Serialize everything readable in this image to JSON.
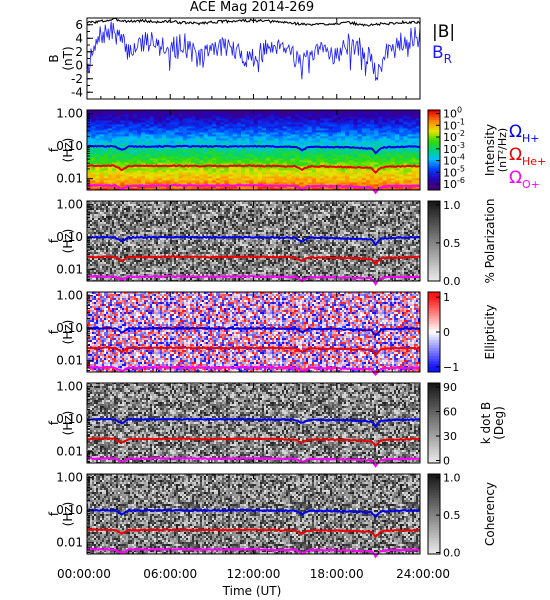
{
  "title": "ACE Mag 2014-269",
  "colors": {
    "B_total": "#000000",
    "B_R": "#1a1aff",
    "omega_H": "#0000ee",
    "omega_He": "#ee0000",
    "omega_O": "#ff00ff",
    "frame": "#000000"
  },
  "chart_data": [
    {
      "type": "line",
      "panel": "B",
      "ylabel": "B (nT)",
      "ytick_labels": [
        "6",
        "4",
        "2",
        "0",
        "-2",
        "-4"
      ],
      "ylim": [
        -5,
        7
      ],
      "xlim_hours": [
        0,
        24
      ],
      "series": [
        {
          "name": "|B|",
          "color": "#000000",
          "x": [
            0,
            1,
            2,
            3,
            4,
            5,
            6,
            7,
            8,
            9,
            10,
            11,
            12,
            13,
            14,
            15,
            16,
            17,
            18,
            19,
            20,
            21,
            22,
            23,
            24
          ],
          "values": [
            6.3,
            6.5,
            6.8,
            6.5,
            6.6,
            6.4,
            6.5,
            6.3,
            6.2,
            6.4,
            6.5,
            6.6,
            6.6,
            6.5,
            6.4,
            6.2,
            6.0,
            6.1,
            6.2,
            6.3,
            5.9,
            6.1,
            6.2,
            6.4,
            6.3
          ]
        },
        {
          "name": "B_R",
          "label_main": "B",
          "label_sub": "R",
          "color": "#1a1aff",
          "x": [
            0,
            1,
            2,
            3,
            4,
            5,
            6,
            7,
            8,
            9,
            10,
            11,
            12,
            13,
            14,
            15,
            16,
            17,
            18,
            19,
            20,
            21,
            22,
            23,
            24
          ],
          "values": [
            -0.5,
            4.5,
            5.0,
            2.0,
            3.5,
            4.0,
            2.5,
            3.5,
            1.0,
            2.5,
            3.0,
            1.5,
            1.0,
            2.5,
            3.5,
            1.5,
            0.5,
            2.5,
            1.5,
            3.5,
            2.0,
            -1.0,
            3.5,
            3.8,
            4.2
          ]
        }
      ]
    },
    {
      "type": "heatmap",
      "panel": "intensity",
      "ylabel": "f (Hz)",
      "ytick_labels": [
        "1.00",
        "0.10",
        "0.01"
      ],
      "ylim": [
        0.0045,
        1.3
      ],
      "yscale": "log",
      "colorbar_label": "Intensity (nT²/Hz)",
      "colorbar_ticks": [
        {
          "base": "10",
          "exp": "0"
        },
        {
          "base": "10",
          "exp": "-1"
        },
        {
          "base": "10",
          "exp": "-2"
        },
        {
          "base": "10",
          "exp": "-3"
        },
        {
          "base": "10",
          "exp": "-4"
        },
        {
          "base": "10",
          "exp": "-5"
        },
        {
          "base": "10",
          "exp": "-6"
        }
      ],
      "colorbar_range_log10": [
        -6.5,
        0.3
      ],
      "colormap": "rainbow",
      "gyro_legend": [
        {
          "symbol": "Ω",
          "sub": "H+",
          "color": "#0000ee"
        },
        {
          "symbol": "Ω",
          "sub": "He+",
          "color": "#ee0000"
        },
        {
          "symbol": "Ω",
          "sub": "O+",
          "color": "#ff00ff"
        }
      ]
    },
    {
      "type": "heatmap",
      "panel": "polarization",
      "ylabel": "f (Hz)",
      "ytick_labels": [
        "1.00",
        "0.10",
        "0.01"
      ],
      "yscale": "log",
      "colorbar_label": "% Polarization",
      "colorbar_ticks": [
        "1.0",
        "0.5",
        "0.0"
      ],
      "colorbar_range": [
        0,
        1.05
      ],
      "colormap": "grayscale"
    },
    {
      "type": "heatmap",
      "panel": "ellipticity",
      "ylabel": "f (Hz)",
      "ytick_labels": [
        "1.00",
        "0.10",
        "0.01"
      ],
      "yscale": "log",
      "colorbar_label": "Ellipticity",
      "colorbar_ticks": [
        "1",
        "0",
        "−1"
      ],
      "colorbar_range": [
        -1.15,
        1.15
      ],
      "colormap": "blue-white-red"
    },
    {
      "type": "heatmap",
      "panel": "k_dot_B",
      "ylabel": "f (Hz)",
      "ytick_labels": [
        "1.00",
        "0.10",
        "0.01"
      ],
      "yscale": "log",
      "colorbar_label_lines": [
        "k dot B",
        "(Deg)"
      ],
      "colorbar_ticks": [
        "90",
        "60",
        "30",
        "0"
      ],
      "colorbar_range": [
        -3,
        95
      ],
      "colormap": "grayscale"
    },
    {
      "type": "heatmap",
      "panel": "coherency",
      "ylabel": "f (Hz)",
      "ytick_labels": [
        "1.00",
        "0.10",
        "0.01"
      ],
      "yscale": "log",
      "colorbar_label": "Coherency",
      "colorbar_ticks": [
        "1.0",
        "0.5",
        "0.0"
      ],
      "colorbar_range": [
        -0.02,
        1.05
      ],
      "colormap": "grayscale"
    }
  ],
  "gyrofrequencies_hz": {
    "x": [
      0,
      2,
      2.5,
      3,
      6,
      9,
      12,
      15,
      15.5,
      16,
      18,
      20.5,
      20.8,
      21.2,
      22,
      24
    ],
    "H": [
      0.1,
      0.1,
      0.075,
      0.098,
      0.1,
      0.098,
      0.1,
      0.096,
      0.075,
      0.096,
      0.094,
      0.086,
      0.06,
      0.09,
      0.095,
      0.098
    ]
  },
  "x_axis": {
    "label": "Time (UT)",
    "tick_labels": [
      "00:00:00",
      "06:00:00",
      "12:00:00",
      "18:00:00",
      "24:00:00"
    ]
  }
}
